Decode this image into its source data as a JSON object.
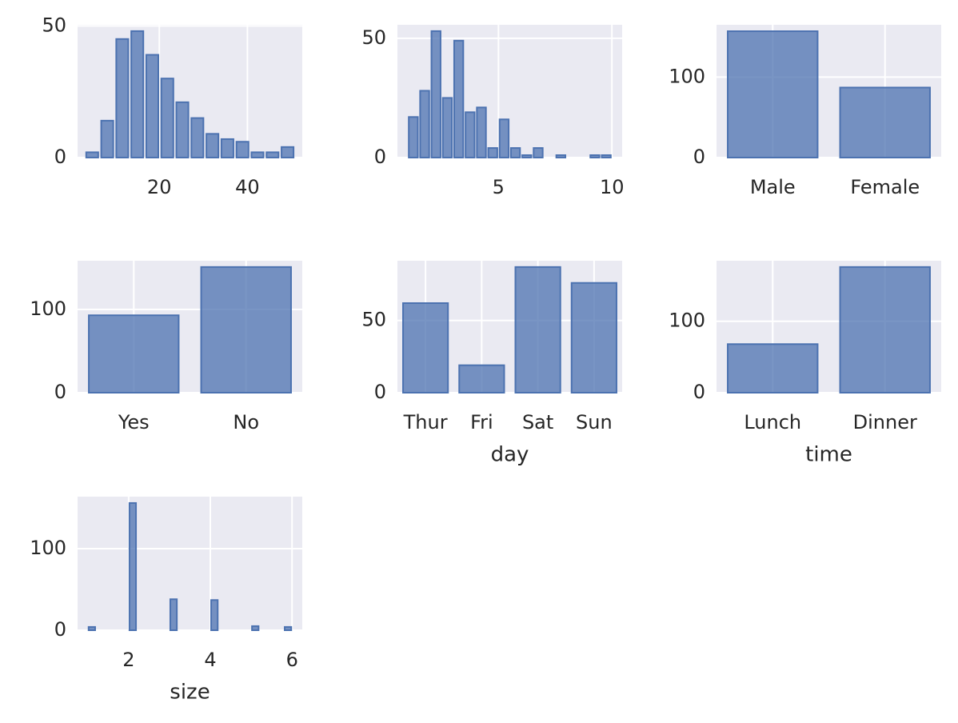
{
  "chart_data": [
    {
      "type": "histogram",
      "bins": [
        3.07,
        6.48,
        9.89,
        13.3,
        16.71,
        20.12,
        23.53,
        26.94,
        30.35,
        33.76,
        37.17,
        40.58,
        43.99,
        47.4,
        50.81
      ],
      "values": [
        2,
        14,
        45,
        48,
        39,
        30,
        21,
        15,
        9,
        7,
        6,
        2,
        2,
        4
      ],
      "color": "#4c72b0",
      "xlim": [
        1.45,
        52.45
      ],
      "xticks": [
        20,
        40
      ],
      "ylim": [
        0,
        50.4
      ],
      "yticks": [
        0,
        50
      ],
      "grid": true
    },
    {
      "type": "histogram",
      "bins": [
        1.0,
        1.5,
        2.0,
        2.5,
        3.0,
        3.5,
        4.0,
        4.5,
        5.0,
        5.5,
        6.0,
        6.5,
        7.0,
        7.5,
        8.0,
        8.5,
        9.0,
        9.5,
        10.0
      ],
      "values": [
        17,
        28,
        53,
        25,
        49,
        19,
        21,
        4,
        16,
        4,
        1,
        4,
        0,
        1,
        0,
        0,
        1,
        1
      ],
      "color": "#4c72b0",
      "xlim": [
        0.55,
        10.45
      ],
      "xticks": [
        5,
        10
      ],
      "ylim": [
        0,
        55.65
      ],
      "yticks": [
        0,
        50
      ],
      "grid": true
    },
    {
      "type": "bar",
      "categories": [
        "Male",
        "Female"
      ],
      "values": [
        157,
        87
      ],
      "color": "#4c72b0",
      "ylim": [
        0,
        165
      ],
      "yticks": [
        0,
        100
      ],
      "grid": true
    },
    {
      "type": "bar",
      "categories": [
        "Yes",
        "No"
      ],
      "values": [
        93,
        151
      ],
      "color": "#4c72b0",
      "ylim": [
        0,
        158.55
      ],
      "yticks": [
        0,
        100
      ],
      "grid": true
    },
    {
      "type": "bar",
      "categories": [
        "Thur",
        "Fri",
        "Sat",
        "Sun"
      ],
      "values": [
        62,
        19,
        87,
        76
      ],
      "color": "#4c72b0",
      "ylim": [
        0,
        91.35
      ],
      "yticks": [
        0,
        50
      ],
      "grid": true,
      "xlabel": "day"
    },
    {
      "type": "bar",
      "categories": [
        "Lunch",
        "Dinner"
      ],
      "values": [
        68,
        176
      ],
      "color": "#4c72b0",
      "ylim": [
        0,
        184.8
      ],
      "yticks": [
        0,
        100
      ],
      "grid": true,
      "xlabel": "time"
    },
    {
      "type": "histogram",
      "bins": [
        1.0,
        1.2,
        1.4,
        1.6,
        1.8,
        2.0,
        2.2,
        2.4,
        2.6,
        2.8,
        3.0,
        3.2,
        3.4,
        3.6,
        3.8,
        4.0,
        4.2,
        4.4,
        4.6,
        4.8,
        5.0,
        5.2,
        5.4,
        5.6,
        5.8,
        6.0
      ],
      "values": [
        4,
        0,
        0,
        0,
        0,
        156,
        0,
        0,
        0,
        0,
        38,
        0,
        0,
        0,
        0,
        37,
        0,
        0,
        0,
        0,
        5,
        0,
        0,
        0,
        4
      ],
      "color": "#4c72b0",
      "xlim": [
        0.75,
        6.25
      ],
      "xticks": [
        2,
        4,
        6
      ],
      "ylim": [
        0,
        163.8
      ],
      "yticks": [
        0,
        100
      ],
      "grid": true,
      "xlabel": "size"
    }
  ]
}
